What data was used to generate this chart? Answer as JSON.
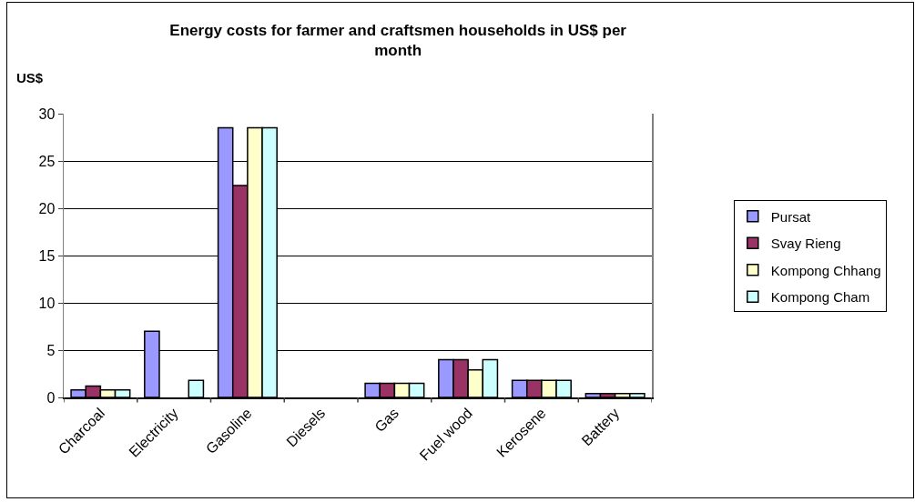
{
  "chart_data": {
    "type": "bar",
    "title": "Energy costs for farmer and craftsmen households in US$ per month",
    "ylabel": "US$",
    "categories": [
      "Charcoal",
      "Electricity",
      "Gasoline",
      "Diesels",
      "Gas",
      "Fuel wood",
      "Kerosene",
      "Battery"
    ],
    "series": [
      {
        "name": "Pursat",
        "color": "#9999ff",
        "values": [
          0.8,
          7,
          28.5,
          0,
          1.5,
          4,
          1.8,
          0.4
        ]
      },
      {
        "name": "Svay Rieng",
        "color": "#993366",
        "values": [
          1.2,
          0,
          22.4,
          0,
          1.5,
          4,
          1.8,
          0.4
        ]
      },
      {
        "name": "Kompong Chhang",
        "color": "#ffffcc",
        "values": [
          0.8,
          0,
          28.5,
          0,
          1.5,
          2.9,
          1.8,
          0.4
        ]
      },
      {
        "name": "Kompong Cham",
        "color": "#ccffff",
        "values": [
          0.8,
          1.8,
          28.5,
          0,
          1.5,
          4,
          1.8,
          0.4
        ]
      }
    ],
    "ylim": [
      0,
      30
    ],
    "yticks": [
      0,
      5,
      10,
      15,
      20,
      25,
      30
    ],
    "grid": "y",
    "legend": "right"
  }
}
